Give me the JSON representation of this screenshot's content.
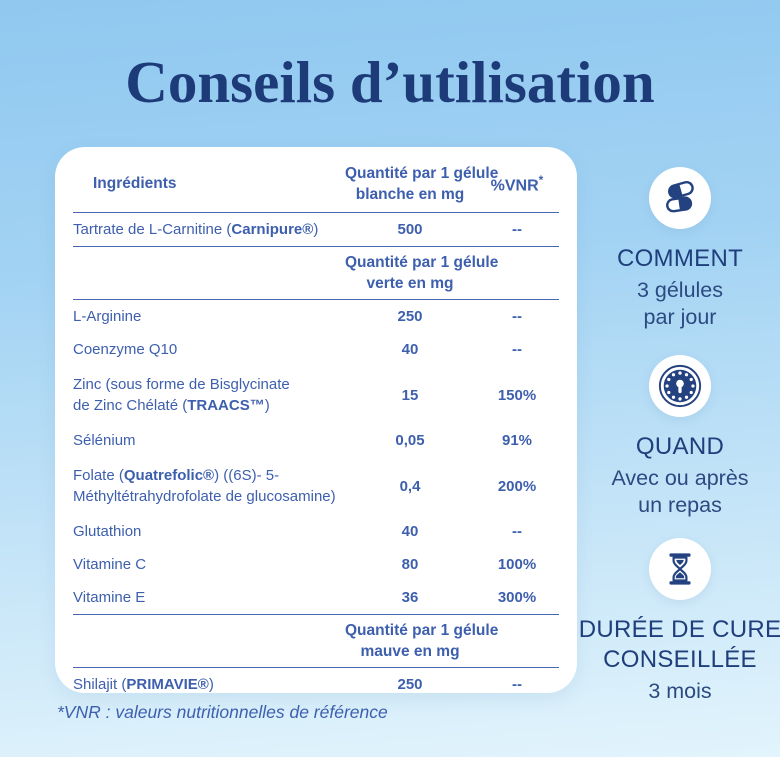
{
  "page": {
    "title": "Conseils d’utilisation",
    "footnote": "*VNR : valeurs nutritionnelles de référence"
  },
  "colors": {
    "title_navy": "#1d3b79",
    "table_blue": "#3d5fae",
    "rule_blue": "#4566b2",
    "background_top": "#90c8f0",
    "background_bottom": "#e2f4fc",
    "card_white": "#ffffff"
  },
  "table": {
    "header": {
      "col1": "Ingrédients",
      "col2": "Quantité par 1 gélule\nblanche en mg",
      "col3": "%VNR",
      "col3_sup": "*"
    },
    "rows": [
      {
        "type": "ingredient",
        "name_parts": [
          [
            "Tartrate de L-Carnitine (",
            false
          ],
          [
            "Carnipure®",
            true
          ],
          [
            ")",
            false
          ]
        ],
        "qty": "500",
        "vnr": "--"
      },
      {
        "type": "subheader",
        "label": "Quantité par 1 gélule\nverte en mg"
      },
      {
        "type": "ingredient",
        "name_parts": [
          [
            "L-Arginine",
            false
          ]
        ],
        "qty": "250",
        "vnr": "--"
      },
      {
        "type": "ingredient",
        "name_parts": [
          [
            "Coenzyme Q10",
            false
          ]
        ],
        "qty": "40",
        "vnr": "--"
      },
      {
        "type": "ingredient",
        "name_parts": [
          [
            "Zinc (sous forme de Bisglycinate\nde Zinc Chélaté (",
            false
          ],
          [
            "TRAACS™",
            true
          ],
          [
            ")",
            false
          ]
        ],
        "qty": "15",
        "vnr": "150%"
      },
      {
        "type": "ingredient",
        "name_parts": [
          [
            "Sélénium",
            false
          ]
        ],
        "qty": "0,05",
        "vnr": "91%"
      },
      {
        "type": "ingredient",
        "name_parts": [
          [
            "Folate (",
            false
          ],
          [
            "Quatrefolic®",
            true
          ],
          [
            ") ((6S)- 5-\nMéthyltétrahydrofolate de glucosamine)",
            false
          ]
        ],
        "qty": "0,4",
        "vnr": "200%"
      },
      {
        "type": "ingredient",
        "name_parts": [
          [
            "Glutathion",
            false
          ]
        ],
        "qty": "40",
        "vnr": "--"
      },
      {
        "type": "ingredient",
        "name_parts": [
          [
            "Vitamine C",
            false
          ]
        ],
        "qty": "80",
        "vnr": "100%"
      },
      {
        "type": "ingredient",
        "name_parts": [
          [
            "Vitamine E",
            false
          ]
        ],
        "qty": "36",
        "vnr": "300%"
      },
      {
        "type": "subheader",
        "label": "Quantité par 1 gélule\nmauve en mg"
      },
      {
        "type": "ingredient",
        "name_parts": [
          [
            "Shilajit (",
            false
          ],
          [
            "PRIMAVIE®",
            true
          ],
          [
            ")",
            false
          ]
        ],
        "qty": "250",
        "vnr": "--"
      }
    ]
  },
  "sidebar": {
    "items": [
      {
        "icon": "pills-icon",
        "title": "COMMENT",
        "text": "3 gélules\npar jour"
      },
      {
        "icon": "clock-icon",
        "title": "QUAND",
        "text": "Avec ou après\nun repas"
      },
      {
        "icon": "hourglass-icon",
        "title": "DURÉE DE CURE\nCONSEILLÉE",
        "text": "3 mois"
      }
    ]
  }
}
